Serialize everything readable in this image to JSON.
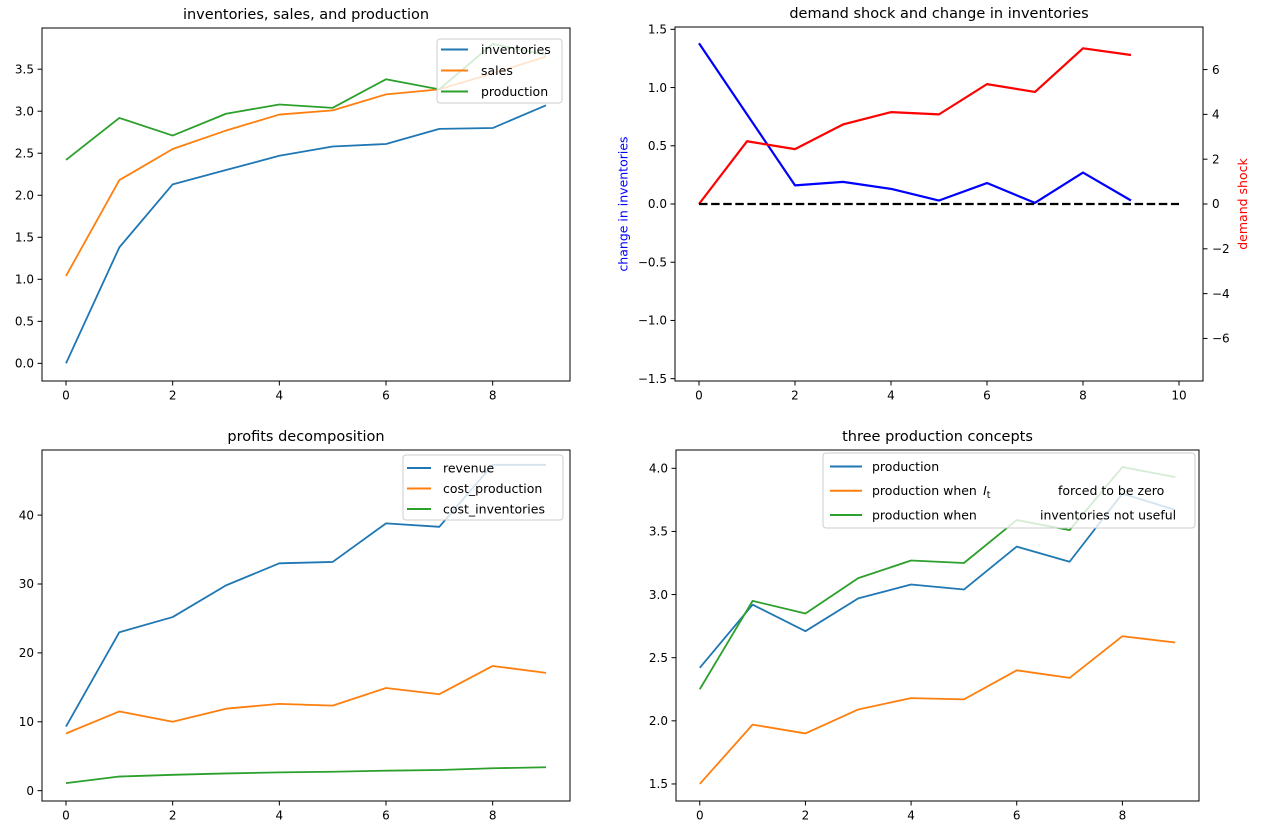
{
  "figure": {
    "background": "#ffffff",
    "grid": "off"
  },
  "chart_data": [
    {
      "id": "inventories-sales-production",
      "type": "line",
      "title": "inventories, sales, and production",
      "x": [
        0,
        1,
        2,
        3,
        4,
        5,
        6,
        7,
        8,
        9
      ],
      "xticks": [
        "0",
        "2",
        "4",
        "6",
        "8"
      ],
      "yticks": [
        "0.0",
        "0.5",
        "1.0",
        "1.5",
        "2.0",
        "2.5",
        "3.0",
        "3.5"
      ],
      "xlim": [
        -0.45,
        9.45
      ],
      "ylim": [
        -0.21,
        3.99
      ],
      "legend_position": "upper right",
      "series": [
        {
          "name": "inventories",
          "color": "#1f77b4",
          "values": [
            0.0,
            1.38,
            2.13,
            2.3,
            2.47,
            2.58,
            2.61,
            2.79,
            2.8,
            3.07
          ]
        },
        {
          "name": "sales",
          "color": "#ff7f0e",
          "values": [
            1.04,
            2.18,
            2.55,
            2.77,
            2.96,
            3.01,
            3.2,
            3.26,
            3.45,
            3.65
          ]
        },
        {
          "name": "production",
          "color": "#2ca02c",
          "values": [
            2.42,
            2.92,
            2.71,
            2.97,
            3.08,
            3.04,
            3.38,
            3.26,
            3.8,
            3.67
          ]
        }
      ],
      "legend": {
        "entries": [
          {
            "label": "inventories"
          },
          {
            "label": "sales"
          },
          {
            "label": "production"
          }
        ]
      }
    },
    {
      "id": "demand-shock-change-in-inventories",
      "type": "line-dual-axis",
      "title": "demand shock and change in inventories",
      "x": [
        0,
        1,
        2,
        3,
        4,
        5,
        6,
        7,
        8,
        9
      ],
      "xticks": [
        "0",
        "2",
        "4",
        "6",
        "8",
        "10"
      ],
      "xlim": [
        -0.5,
        10.5
      ],
      "left_axis": {
        "label": "change in inventories",
        "color": "#0000ff",
        "ticks": [
          "−1.5",
          "−1.0",
          "−0.5",
          "0.0",
          "0.5",
          "1.0",
          "1.5"
        ],
        "lim": [
          -1.52,
          1.52
        ]
      },
      "right_axis": {
        "label": "demand shock",
        "color": "#ff0000",
        "ticks": [
          "−6",
          "−4",
          "−2",
          "0",
          "2",
          "4",
          "6"
        ],
        "lim": [
          -7.9,
          7.9
        ]
      },
      "series": [
        {
          "name": "change in inventories",
          "axis": "left",
          "color": "#0000ff",
          "values": [
            1.38,
            0.77,
            0.16,
            0.19,
            0.13,
            0.03,
            0.18,
            0.01,
            0.27,
            0.03
          ]
        },
        {
          "name": "demand shock",
          "axis": "right",
          "color": "#ff0000",
          "values": [
            0.0,
            2.8,
            2.45,
            3.55,
            4.1,
            4.0,
            5.35,
            5.0,
            6.95,
            6.65
          ]
        },
        {
          "name": "zero line",
          "axis": "left",
          "color": "#000000",
          "dashed": true,
          "x": [
            0,
            10
          ],
          "values": [
            0,
            0
          ]
        }
      ]
    },
    {
      "id": "profits-decomposition",
      "type": "line",
      "title": "profits decomposition",
      "x": [
        0,
        1,
        2,
        3,
        4,
        5,
        6,
        7,
        8,
        9
      ],
      "xticks": [
        "0",
        "2",
        "4",
        "6",
        "8"
      ],
      "yticks": [
        "0",
        "10",
        "20",
        "30",
        "40"
      ],
      "xlim": [
        -0.45,
        9.45
      ],
      "ylim": [
        -1.5,
        49.45
      ],
      "legend_position": "upper right",
      "series": [
        {
          "name": "revenue",
          "color": "#1f77b4",
          "values": [
            9.3,
            23.0,
            25.2,
            29.8,
            33.0,
            33.2,
            38.8,
            38.3,
            47.3,
            47.3
          ]
        },
        {
          "name": "cost_production",
          "color": "#ff7f0e",
          "values": [
            8.3,
            11.5,
            10.0,
            11.9,
            12.6,
            12.35,
            14.9,
            14.0,
            18.1,
            17.1
          ]
        },
        {
          "name": "cost_inventories",
          "color": "#2ca02c",
          "values": [
            1.1,
            2.05,
            2.3,
            2.5,
            2.65,
            2.75,
            2.9,
            3.0,
            3.25,
            3.4
          ]
        }
      ],
      "legend": {
        "entries": [
          {
            "label": "revenue"
          },
          {
            "label": "cost_production"
          },
          {
            "label": "cost_inventories"
          }
        ]
      }
    },
    {
      "id": "three-production-concepts",
      "type": "line",
      "title": "three production concepts",
      "x": [
        0,
        1,
        2,
        3,
        4,
        5,
        6,
        7,
        8,
        9
      ],
      "xticks": [
        "0",
        "2",
        "4",
        "6",
        "8"
      ],
      "yticks": [
        "1.5",
        "2.0",
        "2.5",
        "3.0",
        "3.5",
        "4.0"
      ],
      "xlim": [
        -0.45,
        9.45
      ],
      "ylim": [
        1.365,
        4.145
      ],
      "legend_position": "upper center",
      "series": [
        {
          "name": "production",
          "color": "#1f77b4",
          "values": [
            2.42,
            2.92,
            2.71,
            2.97,
            3.08,
            3.04,
            3.38,
            3.26,
            3.8,
            3.67
          ]
        },
        {
          "name": "production when I_t forced to be zero",
          "color": "#ff7f0e",
          "values": [
            1.5,
            1.97,
            1.9,
            2.09,
            2.18,
            2.17,
            2.4,
            2.34,
            2.67,
            2.62
          ]
        },
        {
          "name": "production when inventories not useful",
          "color": "#2ca02c",
          "values": [
            2.25,
            2.95,
            2.85,
            3.13,
            3.27,
            3.25,
            3.59,
            3.51,
            4.01,
            3.93
          ]
        }
      ],
      "legend": {
        "entries": [
          {
            "label": "production"
          },
          {
            "label": "production when",
            "math": {
              "var": "I",
              "sub": "t"
            },
            "label_right": "forced to be zero"
          },
          {
            "label": "production when",
            "label_right": "inventories not useful"
          }
        ]
      }
    }
  ]
}
